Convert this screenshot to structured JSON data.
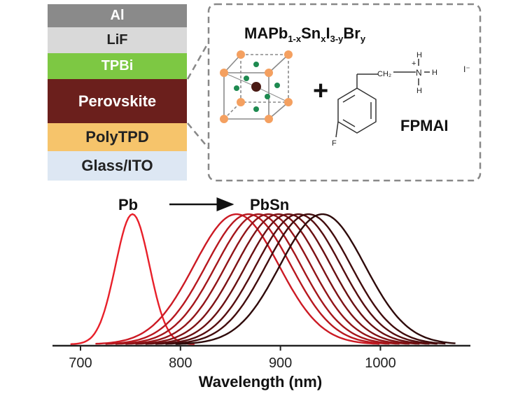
{
  "device_stack": {
    "layers": [
      {
        "label": "Al",
        "color": "#8a8a8a",
        "text_color": "#ffffff"
      },
      {
        "label": "LiF",
        "color": "#d9d9d9",
        "text_color": "#222222"
      },
      {
        "label": "TPBi",
        "color": "#7dc843",
        "text_color": "#ffffff"
      },
      {
        "label": "Perovskite",
        "color": "#6b1f1c",
        "text_color": "#ffffff"
      },
      {
        "label": "PolyTPD",
        "color": "#f6c46b",
        "text_color": "#222222"
      },
      {
        "label": "Glass/ITO",
        "color": "#dde7f3",
        "text_color": "#222222"
      }
    ]
  },
  "inset": {
    "formula": {
      "base": "MAPb",
      "sub1": "1-x",
      "sn": "Sn",
      "sub2": "x",
      "i": "I",
      "sub3": "3-y",
      "br": "Br",
      "sub4": "y"
    },
    "plus": "+",
    "molecule_label": "FPMAI",
    "atoms": {
      "ch2": "CH₂",
      "n": "N",
      "h": "H",
      "charge": "+",
      "f": "F",
      "iodide": "I⁻"
    }
  },
  "chart_data": {
    "type": "line",
    "xlabel": "Wavelength (nm)",
    "ylabel": "",
    "xlim": [
      672,
      1090
    ],
    "xticks": [
      700,
      800,
      900,
      1000
    ],
    "annotations": {
      "start": "Pb",
      "end": "PbSn"
    },
    "series": [
      {
        "peak": 752,
        "fwhm": 40,
        "range": [
          690,
          815
        ],
        "color": "#e8202a"
      },
      {
        "peak": 856,
        "fwhm": 100,
        "range": [
          715,
          1000
        ],
        "color": "#cc1a24"
      },
      {
        "peak": 868,
        "fwhm": 100,
        "range": [
          725,
          1010
        ],
        "color": "#b8181f"
      },
      {
        "peak": 878,
        "fwhm": 100,
        "range": [
          735,
          1020
        ],
        "color": "#a4161b"
      },
      {
        "peak": 888,
        "fwhm": 100,
        "range": [
          745,
          1030
        ],
        "color": "#921418"
      },
      {
        "peak": 898,
        "fwhm": 100,
        "range": [
          755,
          1040
        ],
        "color": "#7e1215"
      },
      {
        "peak": 908,
        "fwhm": 100,
        "range": [
          765,
          1050
        ],
        "color": "#6a1012"
      },
      {
        "peak": 918,
        "fwhm": 100,
        "range": [
          775,
          1058
        ],
        "color": "#560e10"
      },
      {
        "peak": 928,
        "fwhm": 100,
        "range": [
          785,
          1065
        ],
        "color": "#420c0d"
      },
      {
        "peak": 942,
        "fwhm": 100,
        "range": [
          795,
          1075
        ],
        "color": "#2e0a0a"
      }
    ]
  }
}
